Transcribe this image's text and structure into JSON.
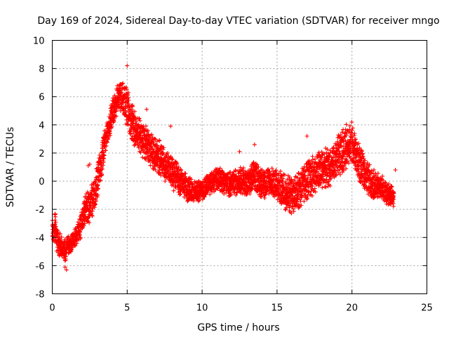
{
  "chart_data": {
    "type": "scatter",
    "title": "Day 169 of 2024, Sidereal Day-to-day VTEC variation (SDTVAR) for receiver mngo",
    "xlabel": "GPS time / hours",
    "ylabel": "SDTVAR / TECUs",
    "xlim": [
      0,
      25
    ],
    "ylim": [
      -8,
      10
    ],
    "xticks": [
      0,
      5,
      10,
      15,
      20,
      25
    ],
    "yticks": [
      -8,
      -6,
      -4,
      -2,
      0,
      2,
      4,
      6,
      8,
      10
    ],
    "xtick_labels": [
      "0",
      "5",
      "10",
      "15",
      "20",
      "25"
    ],
    "ytick_labels": [
      "-8",
      "-6",
      "-4",
      "-2",
      "0",
      "2",
      "4",
      "6",
      "8",
      "10"
    ],
    "grid": true,
    "marker": "+",
    "color": "#ff0000",
    "series": [
      {
        "name": "SDTVAR",
        "trend": {
          "x": [
            0,
            0.1,
            0.2,
            0.3,
            0.5,
            0.7,
            0.9,
            1.0,
            1.2,
            1.5,
            1.8,
            2.0,
            2.2,
            2.5,
            2.8,
            3.0,
            3.3,
            3.5,
            3.8,
            4.0,
            4.2,
            4.5,
            4.8,
            5.0,
            5.2,
            5.5,
            6.0,
            6.5,
            7.0,
            7.5,
            8.0,
            8.5,
            9.0,
            9.5,
            10.0,
            10.5,
            11.0,
            11.5,
            12.0,
            12.5,
            13.0,
            13.5,
            14.0,
            14.5,
            15.0,
            15.5,
            16.0,
            16.5,
            17.0,
            17.5,
            18.0,
            18.5,
            19.0,
            19.5,
            19.8,
            20.0,
            20.3,
            20.6,
            21.0,
            21.5,
            22.0,
            22.5,
            22.8
          ],
          "y": [
            -3.2,
            -3.8,
            -3.0,
            -4.2,
            -4.5,
            -4.8,
            -5.0,
            -4.3,
            -4.6,
            -4.0,
            -3.5,
            -2.8,
            -2.0,
            -1.8,
            -1.0,
            0.0,
            1.5,
            2.8,
            3.8,
            4.8,
            5.5,
            6.0,
            5.6,
            5.2,
            4.5,
            3.8,
            3.0,
            2.4,
            1.8,
            1.2,
            0.6,
            0.0,
            -0.5,
            -0.8,
            -0.6,
            -0.2,
            0.2,
            0.0,
            -0.3,
            0.1,
            -0.2,
            0.4,
            -0.2,
            0.0,
            -0.4,
            -0.7,
            -1.0,
            -0.5,
            0.0,
            0.5,
            0.8,
            1.0,
            1.6,
            2.2,
            2.8,
            2.6,
            1.8,
            1.0,
            0.3,
            -0.3,
            -0.5,
            -1.0,
            -1.2
          ],
          "spread": [
            0.6,
            0.8,
            0.9,
            0.8,
            0.7,
            0.6,
            0.6,
            0.6,
            0.5,
            0.5,
            0.6,
            0.7,
            0.8,
            0.9,
            0.9,
            0.9,
            0.9,
            0.8,
            0.8,
            0.8,
            0.8,
            0.9,
            1.0,
            1.1,
            1.1,
            1.0,
            1.0,
            1.0,
            1.0,
            0.9,
            0.9,
            0.8,
            0.7,
            0.6,
            0.6,
            0.6,
            0.6,
            0.7,
            0.7,
            0.7,
            0.8,
            0.8,
            0.8,
            0.8,
            0.9,
            1.0,
            1.0,
            1.1,
            1.1,
            1.1,
            1.1,
            1.1,
            1.2,
            1.2,
            1.2,
            1.2,
            1.1,
            1.0,
            0.9,
            0.8,
            0.7,
            0.6,
            0.5
          ]
        },
        "outliers": [
          {
            "x": 5.0,
            "y": 8.2
          },
          {
            "x": 0.95,
            "y": -6.3
          },
          {
            "x": 0.85,
            "y": -6.1
          },
          {
            "x": 2.5,
            "y": 1.2
          },
          {
            "x": 2.4,
            "y": 1.1
          },
          {
            "x": 6.3,
            "y": 5.1
          },
          {
            "x": 7.9,
            "y": 3.9
          },
          {
            "x": 13.5,
            "y": 2.6
          },
          {
            "x": 12.5,
            "y": 2.1
          },
          {
            "x": 17.0,
            "y": 3.2
          },
          {
            "x": 19.7,
            "y": 3.6
          },
          {
            "x": 22.9,
            "y": 0.8
          }
        ]
      }
    ]
  }
}
